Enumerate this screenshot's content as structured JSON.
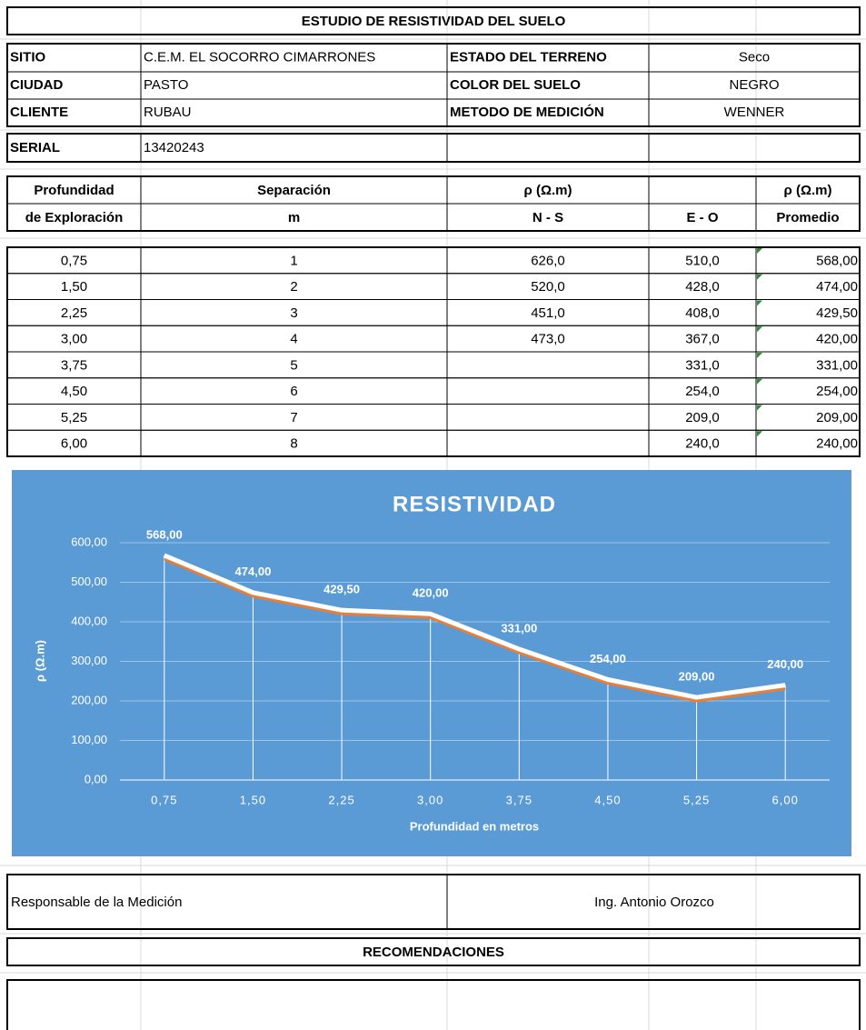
{
  "header": {
    "title": "ESTUDIO DE RESISTIVIDAD DEL SUELO"
  },
  "info": [
    {
      "label": "SITIO",
      "value": "C.E.M. EL SOCORRO CIMARRONES",
      "label2": "ESTADO DEL TERRENO",
      "value2": "Seco"
    },
    {
      "label": "CIUDAD",
      "value": "PASTO",
      "label2": "COLOR DEL SUELO",
      "value2": "NEGRO"
    },
    {
      "label": "CLIENTE",
      "value": "RUBAU",
      "label2": "METODO DE MEDICIÓN",
      "value2": "WENNER"
    }
  ],
  "serial": {
    "label": "SERIAL",
    "value": "13420243"
  },
  "table": {
    "header1": [
      "Profundidad",
      "Separación",
      "ρ (Ω.m)",
      "ρ (Ω.m)"
    ],
    "header2": [
      "de Exploración",
      "m",
      "N - S",
      "E - O",
      "Promedio"
    ],
    "rows": [
      [
        "0,75",
        "1",
        "626,0",
        "510,0",
        "568,00"
      ],
      [
        "1,50",
        "2",
        "520,0",
        "428,0",
        "474,00"
      ],
      [
        "2,25",
        "3",
        "451,0",
        "408,0",
        "429,50"
      ],
      [
        "3,00",
        "4",
        "473,0",
        "367,0",
        "420,00"
      ],
      [
        "3,75",
        "5",
        null,
        "331,0",
        "331,00"
      ],
      [
        "4,50",
        "6",
        null,
        "254,0",
        "254,00"
      ],
      [
        "5,25",
        "7",
        null,
        "209,0",
        "209,00"
      ],
      [
        "6,00",
        "8",
        null,
        "240,0",
        "240,00"
      ]
    ]
  },
  "chart_data": {
    "type": "line",
    "title": "RESISTIVIDAD",
    "x_label": "Profundidad  en metros",
    "y_label": "ρ (Ω.m)",
    "categories": [
      "0,75",
      "1,50",
      "2,25",
      "3,00",
      "3,75",
      "4,50",
      "5,25",
      "6,00"
    ],
    "series": [
      {
        "name": "Promedio",
        "color": "#ffffff",
        "shadow_color": "#ed7d31",
        "values": [
          568,
          474,
          429.5,
          420,
          331,
          254,
          209,
          240
        ],
        "value_labels": [
          "568,00",
          "474,00",
          "429,50",
          "420,00",
          "331,00",
          "254,00",
          "209,00",
          "240,00"
        ]
      }
    ],
    "ylim": [
      0,
      600
    ],
    "yticks": [
      {
        "value": 0,
        "label": "0,00"
      },
      {
        "value": 100,
        "label": "100,00"
      },
      {
        "value": 200,
        "label": "200,00"
      },
      {
        "value": 300,
        "label": "300,00"
      },
      {
        "value": 400,
        "label": "400,00"
      },
      {
        "value": 500,
        "label": "500,00"
      },
      {
        "value": 600,
        "label": "600,00"
      }
    ],
    "grid": true,
    "drop_lines": true
  },
  "footer": {
    "responsible_label": "Responsable de la Medición",
    "responsible": "Ing. Antonio Orozco",
    "recommendations": "RECOMENDACIONES"
  }
}
